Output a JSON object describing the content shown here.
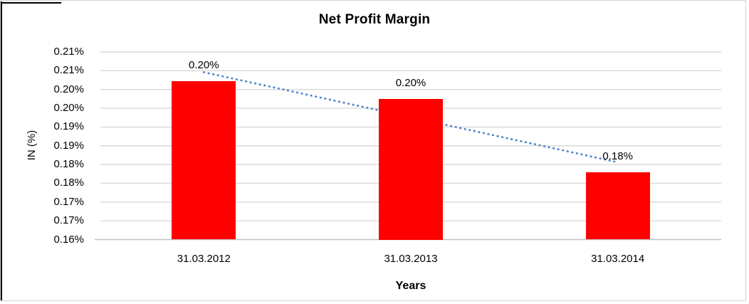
{
  "chart_data": {
    "type": "bar",
    "title": "Net Profit Margin",
    "categories": [
      "31.03.2012",
      "31.03.2013",
      "31.03.2014"
    ],
    "values": [
      0.2022,
      0.1975,
      0.178
    ],
    "data_labels": [
      "0.20%",
      "0.20%",
      "0.18%"
    ],
    "xlabel": "Years",
    "ylabel": "IN (%)",
    "ylim": [
      0.16,
      0.21
    ],
    "ytick_step": 0.005,
    "ytick_labels_top_to_bottom": [
      "0.21%",
      "0.21%",
      "0.20%",
      "0.20%",
      "0.19%",
      "0.19%",
      "0.18%",
      "0.18%",
      "0.17%",
      "0.17%",
      "0.16%"
    ],
    "grid": true,
    "legend": "none",
    "bar_color": "#ff0000",
    "trendline": {
      "type": "linear",
      "style": "dotted",
      "color": "#4e86c8",
      "start_value": 0.2046,
      "end_value": 0.1806
    }
  },
  "colors": {
    "gridline": "#d9d9d9",
    "axis_line": "#bfbfbf",
    "text": "#000000",
    "image_border": "#d4d4d4",
    "chart_border": "#000000"
  }
}
